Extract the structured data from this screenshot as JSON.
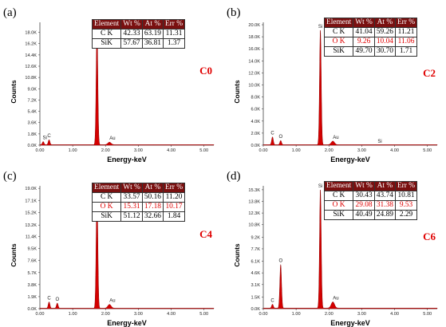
{
  "table_headers": [
    "Element",
    "Wt %",
    "At %",
    "Err %"
  ],
  "x_axis_label": "Energy-keV",
  "y_axis_label": "Counts",
  "x_ticks": [
    "0.00",
    "1.00",
    "2.00",
    "3.00",
    "4.00",
    "5.00"
  ],
  "colors": {
    "spectrum_fill": "#d40000",
    "table_header": "#7a1010",
    "highlight_text": "#e00000"
  },
  "chart_data": [
    {
      "type": "area",
      "panel_label": "(a)",
      "sample_label": "C0",
      "xlabel": "Energy-keV",
      "ylabel": "Counts",
      "xlim": [
        0,
        5.3
      ],
      "ylim": [
        0,
        19.6
      ],
      "y_ticks": [
        "0.0K",
        "1.8K",
        "3.6K",
        "5.4K",
        "7.2K",
        "9.0K",
        "10.8K",
        "12.6K",
        "14.4K",
        "16.2K",
        "18.0K"
      ],
      "peaks": [
        {
          "element": "Si",
          "energy": 0.1,
          "height": 0.5
        },
        {
          "element": "C",
          "energy": 0.28,
          "height": 0.8
        },
        {
          "element": "Si",
          "energy": 1.74,
          "height": 18.6
        },
        {
          "element": "Au",
          "energy": 2.12,
          "height": 0.4
        }
      ],
      "table": [
        [
          "C K",
          "42.33",
          "63.19",
          "11.31"
        ],
        [
          "SiK",
          "57.67",
          "36.81",
          "1.37"
        ]
      ],
      "highlight_rows": []
    },
    {
      "type": "area",
      "panel_label": "(b)",
      "sample_label": "C2",
      "xlabel": "Energy-keV",
      "ylabel": "Counts",
      "xlim": [
        0,
        5.3
      ],
      "ylim": [
        0,
        20.4
      ],
      "y_ticks": [
        "0.0K",
        "2.0K",
        "4.0K",
        "6.0K",
        "8.0K",
        "10.0K",
        "12.0K",
        "14.0K",
        "16.0K",
        "18.0K",
        "20.0K"
      ],
      "peaks": [
        {
          "element": "C",
          "energy": 0.28,
          "height": 1.3
        },
        {
          "element": "O",
          "energy": 0.53,
          "height": 0.7
        },
        {
          "element": "Si",
          "energy": 1.74,
          "height": 19.0
        },
        {
          "element": "Au",
          "energy": 2.12,
          "height": 0.6
        },
        {
          "element": "Si",
          "energy": 3.55,
          "height": 0.0
        }
      ],
      "table": [
        [
          "C K",
          "41.04",
          "59.26",
          "11.21"
        ],
        [
          "O K",
          "9.26",
          "10.04",
          "11.06"
        ],
        [
          "SiK",
          "49.70",
          "30.70",
          "1.71"
        ]
      ],
      "highlight_rows": [
        1
      ]
    },
    {
      "type": "area",
      "panel_label": "(c)",
      "sample_label": "C4",
      "xlabel": "Energy-keV",
      "ylabel": "Counts",
      "xlim": [
        0,
        5.3
      ],
      "ylim": [
        0,
        19.4
      ],
      "y_ticks": [
        "0.0K",
        "1.9K",
        "3.8K",
        "5.7K",
        "7.6K",
        "9.5K",
        "11.4K",
        "13.2K",
        "15.2K",
        "17.1K",
        "19.0K"
      ],
      "peaks": [
        {
          "element": "C",
          "energy": 0.28,
          "height": 1.0
        },
        {
          "element": "O",
          "energy": 0.53,
          "height": 0.8
        },
        {
          "element": "Si",
          "energy": 1.74,
          "height": 18.6
        },
        {
          "element": "Au",
          "energy": 2.12,
          "height": 0.6
        }
      ],
      "table": [
        [
          "C K",
          "33.57",
          "50.16",
          "11.20"
        ],
        [
          "O K",
          "15.31",
          "17.18",
          "10.17"
        ],
        [
          "SiK",
          "51.12",
          "32.66",
          "1.84"
        ]
      ],
      "highlight_rows": [
        1
      ]
    },
    {
      "type": "area",
      "panel_label": "(d)",
      "sample_label": "C6",
      "xlabel": "Energy-keV",
      "ylabel": "Counts",
      "xlim": [
        0,
        5.3
      ],
      "ylim": [
        0,
        15.8
      ],
      "y_ticks": [
        "0.0K",
        "1.5K",
        "3.1K",
        "4.6K",
        "6.1K",
        "7.7K",
        "9.2K",
        "10.8K",
        "12.3K",
        "13.8K",
        "15.3K"
      ],
      "peaks": [
        {
          "element": "C",
          "energy": 0.28,
          "height": 0.5
        },
        {
          "element": "O",
          "energy": 0.53,
          "height": 5.6
        },
        {
          "element": "Si",
          "energy": 1.74,
          "height": 15.2
        },
        {
          "element": "Au",
          "energy": 2.12,
          "height": 0.8
        }
      ],
      "table": [
        [
          "C K",
          "30.43",
          "43.74",
          "10.81"
        ],
        [
          "O K",
          "29.08",
          "31.38",
          "9.53"
        ],
        [
          "SiK",
          "40.49",
          "24.89",
          "2.29"
        ]
      ],
      "highlight_rows": [
        1
      ]
    }
  ]
}
